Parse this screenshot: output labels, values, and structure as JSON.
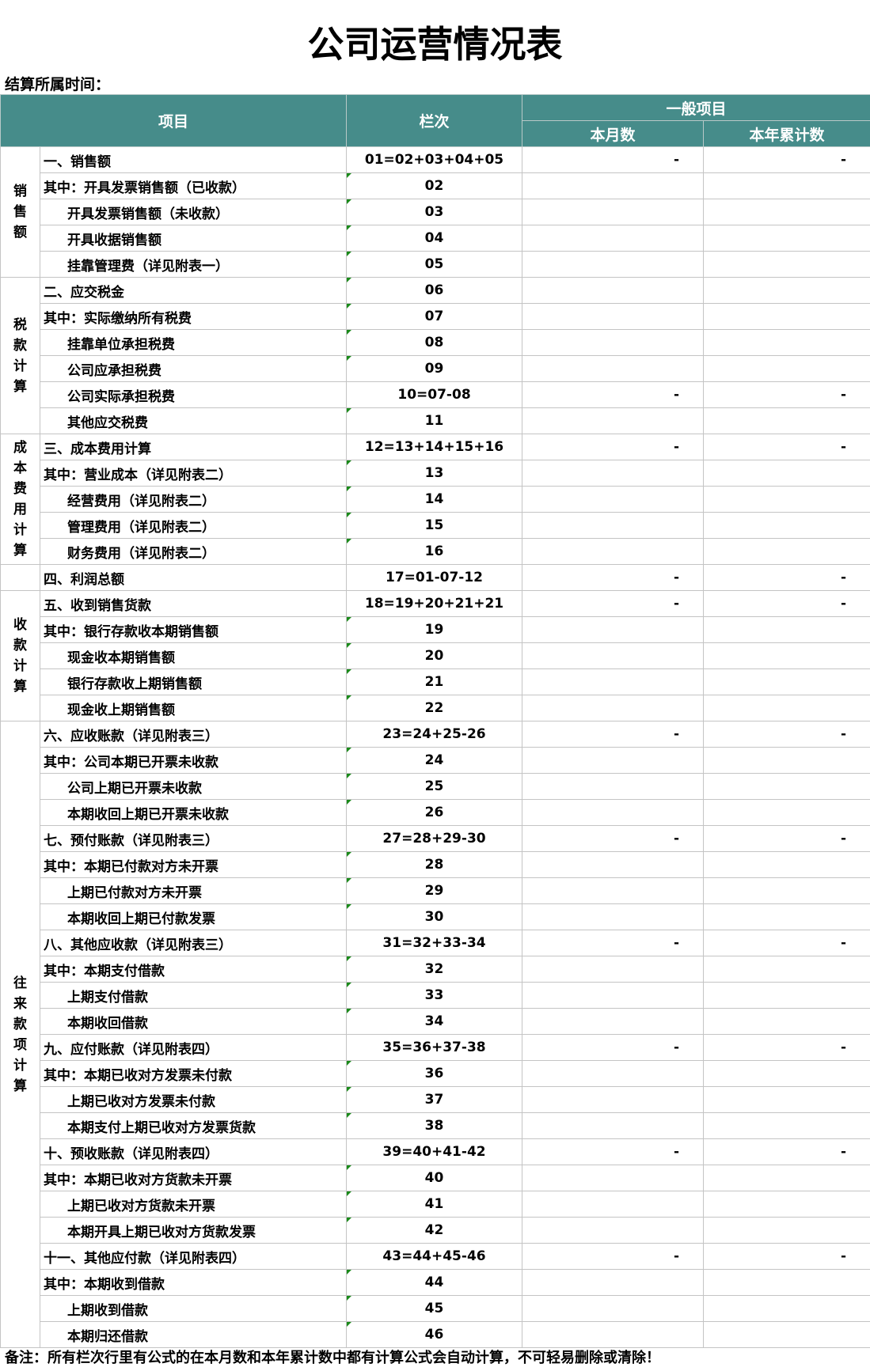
{
  "title": "公司运营情况表",
  "period_label": "结算所属时间：",
  "headers": {
    "item": "项目",
    "code": "栏次",
    "group": "一般项目",
    "month": "本月数",
    "year": "本年累计数"
  },
  "header_color": "#468c8a",
  "groups": [
    {
      "label": "销\n售\n额",
      "rows": 5
    },
    {
      "label": "税\n款\n计\n算",
      "rows": 6
    },
    {
      "label": "成\n本\n费\n用\n计\n算",
      "rows": 5
    },
    {
      "label": "",
      "rows": 1
    },
    {
      "label": "收\n款\n计\n算",
      "rows": 5
    },
    {
      "label": "往\n来\n款\n项\n计\n算",
      "rows": 24
    }
  ],
  "rows": [
    {
      "item": "一、销售额",
      "code": "01=02+03+04+05",
      "month": "-",
      "year": "-"
    },
    {
      "item": "其中：开具发票销售额（已收款）",
      "code": "02",
      "mark": true
    },
    {
      "item": "开具发票销售额（未收款）",
      "code": "03",
      "indent": true,
      "mark": true
    },
    {
      "item": "开具收据销售额",
      "code": "04",
      "indent": true,
      "mark": true
    },
    {
      "item": "挂靠管理费（详见附表一）",
      "code": "05",
      "indent": true,
      "mark": true
    },
    {
      "item": "二、应交税金",
      "code": "06",
      "mark": true
    },
    {
      "item": "其中：实际缴纳所有税费",
      "code": "07",
      "mark": true
    },
    {
      "item": "挂靠单位承担税费",
      "code": "08",
      "indent": true,
      "mark": true
    },
    {
      "item": "公司应承担税费",
      "code": "09",
      "indent": true,
      "mark": true
    },
    {
      "item": "公司实际承担税费",
      "code": "10=07-08",
      "indent": true,
      "month": "-",
      "year": "-"
    },
    {
      "item": "其他应交税费",
      "code": "11",
      "indent": true,
      "mark": true
    },
    {
      "item": "三、成本费用计算",
      "code": "12=13+14+15+16",
      "month": "-",
      "year": "-"
    },
    {
      "item": "其中：营业成本（详见附表二）",
      "code": "13",
      "mark": true
    },
    {
      "item": "经营费用（详见附表二）",
      "code": "14",
      "indent": true,
      "mark": true
    },
    {
      "item": "管理费用（详见附表二）",
      "code": "15",
      "indent": true,
      "mark": true
    },
    {
      "item": "财务费用（详见附表二）",
      "code": "16",
      "indent": true,
      "mark": true
    },
    {
      "item": "四、利润总额",
      "code": "17=01-07-12",
      "month": "-",
      "year": "-"
    },
    {
      "item": "五、收到销售货款",
      "code": "18=19+20+21+21",
      "month": "-",
      "year": "-"
    },
    {
      "item": "其中：银行存款收本期销售额",
      "code": "19",
      "mark": true
    },
    {
      "item": "现金收本期销售额",
      "code": "20",
      "indent": true,
      "mark": true
    },
    {
      "item": "银行存款收上期销售额",
      "code": "21",
      "indent": true,
      "mark": true
    },
    {
      "item": "现金收上期销售额",
      "code": "22",
      "indent": true,
      "mark": true
    },
    {
      "item": "六、应收账款（详见附表三）",
      "code": "23=24+25-26",
      "month": "-",
      "year": "-"
    },
    {
      "item": "其中：公司本期已开票未收款",
      "code": "24",
      "mark": true
    },
    {
      "item": "公司上期已开票未收款",
      "code": "25",
      "indent": true,
      "mark": true
    },
    {
      "item": "本期收回上期已开票未收款",
      "code": "26",
      "indent": true,
      "mark": true
    },
    {
      "item": "七、预付账款（详见附表三）",
      "code": "27=28+29-30",
      "month": "-",
      "year": "-"
    },
    {
      "item": "其中：本期已付款对方未开票",
      "code": "28",
      "mark": true
    },
    {
      "item": "上期已付款对方未开票",
      "code": "29",
      "indent": true,
      "mark": true
    },
    {
      "item": "本期收回上期已付款发票",
      "code": "30",
      "indent": true,
      "mark": true
    },
    {
      "item": "八、其他应收款（详见附表三）",
      "code": "31=32+33-34",
      "month": "-",
      "year": "-"
    },
    {
      "item": "其中：本期支付借款",
      "code": "32",
      "mark": true
    },
    {
      "item": "上期支付借款",
      "code": "33",
      "indent": true,
      "mark": true
    },
    {
      "item": "本期收回借款",
      "code": "34",
      "indent": true,
      "mark": true
    },
    {
      "item": "九、应付账款（详见附表四）",
      "code": "35=36+37-38",
      "month": "-",
      "year": "-"
    },
    {
      "item": "其中：本期已收对方发票未付款",
      "code": "36",
      "mark": true
    },
    {
      "item": "上期已收对方发票未付款",
      "code": "37",
      "indent": true,
      "mark": true
    },
    {
      "item": "本期支付上期已收对方发票货款",
      "code": "38",
      "indent": true,
      "mark": true
    },
    {
      "item": "十、预收账款（详见附表四）",
      "code": "39=40+41-42",
      "month": "-",
      "year": "-"
    },
    {
      "item": "其中：本期已收对方货款未开票",
      "code": "40",
      "mark": true
    },
    {
      "item": "上期已收对方货款未开票",
      "code": "41",
      "indent": true,
      "mark": true
    },
    {
      "item": "本期开具上期已收对方货款发票",
      "code": "42",
      "indent": true,
      "mark": true
    },
    {
      "item": "十一、其他应付款（详见附表四）",
      "code": "43=44+45-46",
      "month": "-",
      "year": "-"
    },
    {
      "item": "其中：本期收到借款",
      "code": "44",
      "mark": true
    },
    {
      "item": "上期收到借款",
      "code": "45",
      "indent": true,
      "mark": true
    },
    {
      "item": "本期归还借款",
      "code": "46",
      "indent": true,
      "mark": true
    }
  ],
  "note": "备注：所有栏次行里有公式的在本月数和本年累计数中都有计算公式会自动计算，不可轻易删除或清除！"
}
